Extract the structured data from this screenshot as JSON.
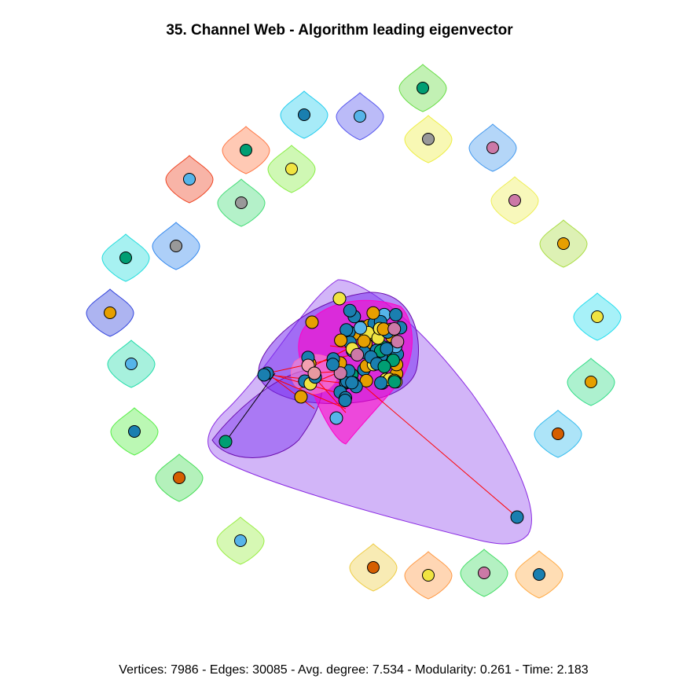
{
  "title": "35. Channel Web - Algorithm leading eigenvector",
  "footer": "Vertices: 7986 - Edges: 30085 - Avg. degree: 7.534 - Modularity: 0.261 - Time: 2.183",
  "colors": {
    "node_palette": [
      "#1a7fb0",
      "#e69f00",
      "#f0e442",
      "#56b4e9",
      "#009e73",
      "#d55e00",
      "#cc79a7",
      "#999999"
    ],
    "edge": "#ff0000",
    "main_hull": "#9b5cf0",
    "inner_hull": "#7a30f0",
    "magenta_hull": "#ff00c8"
  },
  "isolated_communities": [
    {
      "hull": "#66dd44",
      "node": "#009e73"
    },
    {
      "hull": "#22ccee",
      "node": "#1a7fb0"
    },
    {
      "hull": "#5555ee",
      "node": "#56b4e9"
    },
    {
      "hull": "#eeee44",
      "node": "#999999"
    },
    {
      "hull": "#4499ee",
      "node": "#cc79a7"
    },
    {
      "hull": "#ff7744",
      "node": "#009e73"
    },
    {
      "hull": "#88ee44",
      "node": "#f0e442"
    },
    {
      "hull": "#ee4422",
      "node": "#56b4e9"
    },
    {
      "hull": "#44dd77",
      "node": "#999999"
    },
    {
      "hull": "#eeee55",
      "node": "#cc79a7"
    },
    {
      "hull": "#aadd44",
      "node": "#e69f00"
    },
    {
      "hull": "#3388ee",
      "node": "#999999"
    },
    {
      "hull": "#22dddd",
      "node": "#009e73"
    },
    {
      "hull": "#3344dd",
      "node": "#e69f00"
    },
    {
      "hull": "#22ddee",
      "node": "#f0e442"
    },
    {
      "hull": "#22ddaa",
      "node": "#56b4e9"
    },
    {
      "hull": "#33dd88",
      "node": "#e69f00"
    },
    {
      "hull": "#55ee44",
      "node": "#1a7fb0"
    },
    {
      "hull": "#44dd55",
      "node": "#d55e00"
    },
    {
      "hull": "#33bbee",
      "node": "#d55e00"
    },
    {
      "hull": "#99ee44",
      "node": "#56b4e9"
    },
    {
      "hull": "#eecc44",
      "node": "#d55e00"
    },
    {
      "hull": "#ff9944",
      "node": "#f0e442"
    },
    {
      "hull": "#44dd66",
      "node": "#cc79a7"
    },
    {
      "hull": "#ffaa44",
      "node": "#1a7fb0"
    }
  ]
}
